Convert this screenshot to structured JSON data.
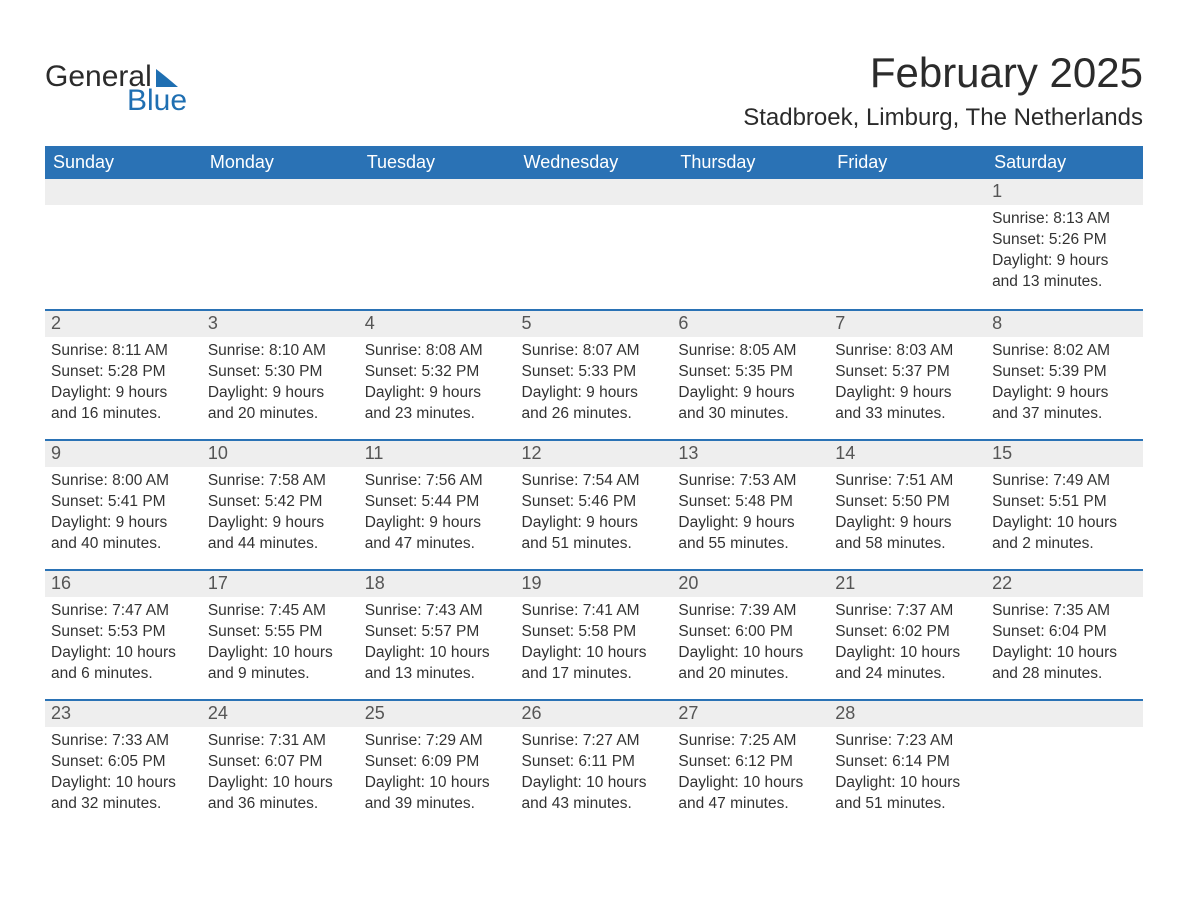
{
  "colors": {
    "header_bg": "#2a72b5",
    "header_text": "#ffffff",
    "daynum_bg": "#eeeeee",
    "daynum_text": "#555555",
    "rule": "#2a72b5",
    "body_text": "#333333",
    "page_bg": "#ffffff",
    "logo_dark": "#2b2b2b",
    "logo_blue": "#1f6fb2"
  },
  "logo": {
    "word1": "General",
    "word2": "Blue"
  },
  "title": "February 2025",
  "location": "Stadbroek, Limburg, The Netherlands",
  "weekdays": [
    "Sunday",
    "Monday",
    "Tuesday",
    "Wednesday",
    "Thursday",
    "Friday",
    "Saturday"
  ],
  "weeks": [
    [
      null,
      null,
      null,
      null,
      null,
      null,
      {
        "n": "1",
        "sunrise": "Sunrise: 8:13 AM",
        "sunset": "Sunset: 5:26 PM",
        "day1": "Daylight: 9 hours",
        "day2": "and 13 minutes."
      }
    ],
    [
      {
        "n": "2",
        "sunrise": "Sunrise: 8:11 AM",
        "sunset": "Sunset: 5:28 PM",
        "day1": "Daylight: 9 hours",
        "day2": "and 16 minutes."
      },
      {
        "n": "3",
        "sunrise": "Sunrise: 8:10 AM",
        "sunset": "Sunset: 5:30 PM",
        "day1": "Daylight: 9 hours",
        "day2": "and 20 minutes."
      },
      {
        "n": "4",
        "sunrise": "Sunrise: 8:08 AM",
        "sunset": "Sunset: 5:32 PM",
        "day1": "Daylight: 9 hours",
        "day2": "and 23 minutes."
      },
      {
        "n": "5",
        "sunrise": "Sunrise: 8:07 AM",
        "sunset": "Sunset: 5:33 PM",
        "day1": "Daylight: 9 hours",
        "day2": "and 26 minutes."
      },
      {
        "n": "6",
        "sunrise": "Sunrise: 8:05 AM",
        "sunset": "Sunset: 5:35 PM",
        "day1": "Daylight: 9 hours",
        "day2": "and 30 minutes."
      },
      {
        "n": "7",
        "sunrise": "Sunrise: 8:03 AM",
        "sunset": "Sunset: 5:37 PM",
        "day1": "Daylight: 9 hours",
        "day2": "and 33 minutes."
      },
      {
        "n": "8",
        "sunrise": "Sunrise: 8:02 AM",
        "sunset": "Sunset: 5:39 PM",
        "day1": "Daylight: 9 hours",
        "day2": "and 37 minutes."
      }
    ],
    [
      {
        "n": "9",
        "sunrise": "Sunrise: 8:00 AM",
        "sunset": "Sunset: 5:41 PM",
        "day1": "Daylight: 9 hours",
        "day2": "and 40 minutes."
      },
      {
        "n": "10",
        "sunrise": "Sunrise: 7:58 AM",
        "sunset": "Sunset: 5:42 PM",
        "day1": "Daylight: 9 hours",
        "day2": "and 44 minutes."
      },
      {
        "n": "11",
        "sunrise": "Sunrise: 7:56 AM",
        "sunset": "Sunset: 5:44 PM",
        "day1": "Daylight: 9 hours",
        "day2": "and 47 minutes."
      },
      {
        "n": "12",
        "sunrise": "Sunrise: 7:54 AM",
        "sunset": "Sunset: 5:46 PM",
        "day1": "Daylight: 9 hours",
        "day2": "and 51 minutes."
      },
      {
        "n": "13",
        "sunrise": "Sunrise: 7:53 AM",
        "sunset": "Sunset: 5:48 PM",
        "day1": "Daylight: 9 hours",
        "day2": "and 55 minutes."
      },
      {
        "n": "14",
        "sunrise": "Sunrise: 7:51 AM",
        "sunset": "Sunset: 5:50 PM",
        "day1": "Daylight: 9 hours",
        "day2": "and 58 minutes."
      },
      {
        "n": "15",
        "sunrise": "Sunrise: 7:49 AM",
        "sunset": "Sunset: 5:51 PM",
        "day1": "Daylight: 10 hours",
        "day2": "and 2 minutes."
      }
    ],
    [
      {
        "n": "16",
        "sunrise": "Sunrise: 7:47 AM",
        "sunset": "Sunset: 5:53 PM",
        "day1": "Daylight: 10 hours",
        "day2": "and 6 minutes."
      },
      {
        "n": "17",
        "sunrise": "Sunrise: 7:45 AM",
        "sunset": "Sunset: 5:55 PM",
        "day1": "Daylight: 10 hours",
        "day2": "and 9 minutes."
      },
      {
        "n": "18",
        "sunrise": "Sunrise: 7:43 AM",
        "sunset": "Sunset: 5:57 PM",
        "day1": "Daylight: 10 hours",
        "day2": "and 13 minutes."
      },
      {
        "n": "19",
        "sunrise": "Sunrise: 7:41 AM",
        "sunset": "Sunset: 5:58 PM",
        "day1": "Daylight: 10 hours",
        "day2": "and 17 minutes."
      },
      {
        "n": "20",
        "sunrise": "Sunrise: 7:39 AM",
        "sunset": "Sunset: 6:00 PM",
        "day1": "Daylight: 10 hours",
        "day2": "and 20 minutes."
      },
      {
        "n": "21",
        "sunrise": "Sunrise: 7:37 AM",
        "sunset": "Sunset: 6:02 PM",
        "day1": "Daylight: 10 hours",
        "day2": "and 24 minutes."
      },
      {
        "n": "22",
        "sunrise": "Sunrise: 7:35 AM",
        "sunset": "Sunset: 6:04 PM",
        "day1": "Daylight: 10 hours",
        "day2": "and 28 minutes."
      }
    ],
    [
      {
        "n": "23",
        "sunrise": "Sunrise: 7:33 AM",
        "sunset": "Sunset: 6:05 PM",
        "day1": "Daylight: 10 hours",
        "day2": "and 32 minutes."
      },
      {
        "n": "24",
        "sunrise": "Sunrise: 7:31 AM",
        "sunset": "Sunset: 6:07 PM",
        "day1": "Daylight: 10 hours",
        "day2": "and 36 minutes."
      },
      {
        "n": "25",
        "sunrise": "Sunrise: 7:29 AM",
        "sunset": "Sunset: 6:09 PM",
        "day1": "Daylight: 10 hours",
        "day2": "and 39 minutes."
      },
      {
        "n": "26",
        "sunrise": "Sunrise: 7:27 AM",
        "sunset": "Sunset: 6:11 PM",
        "day1": "Daylight: 10 hours",
        "day2": "and 43 minutes."
      },
      {
        "n": "27",
        "sunrise": "Sunrise: 7:25 AM",
        "sunset": "Sunset: 6:12 PM",
        "day1": "Daylight: 10 hours",
        "day2": "and 47 minutes."
      },
      {
        "n": "28",
        "sunrise": "Sunrise: 7:23 AM",
        "sunset": "Sunset: 6:14 PM",
        "day1": "Daylight: 10 hours",
        "day2": "and 51 minutes."
      },
      null
    ]
  ]
}
